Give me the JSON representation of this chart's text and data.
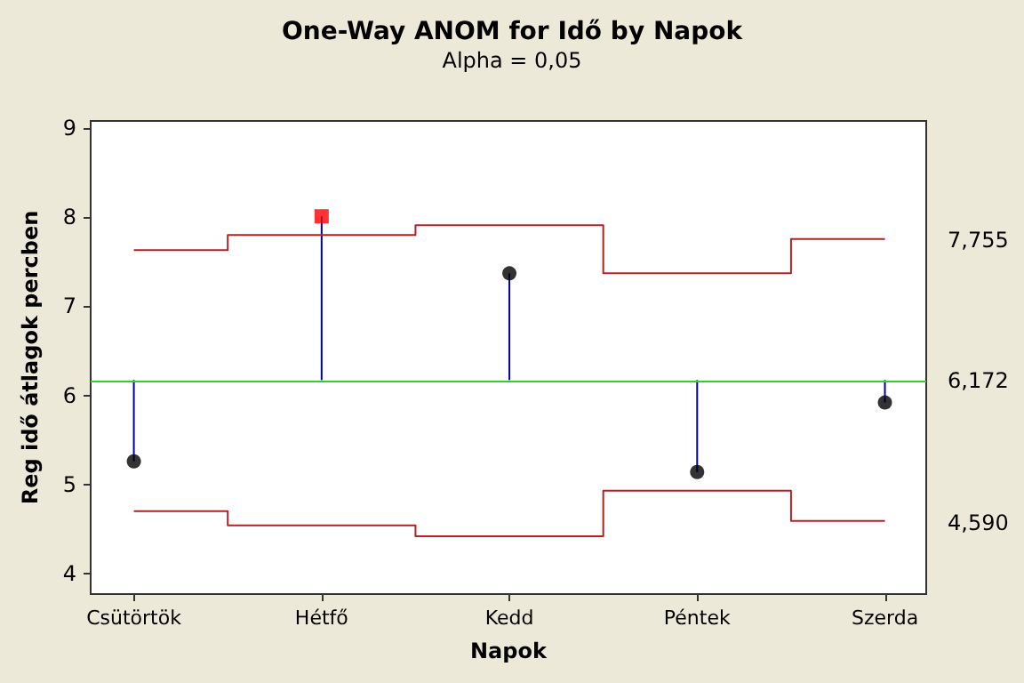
{
  "chart_data": {
    "type": "scatter",
    "title": "One-Way ANOM for Idő by Napok",
    "subtitle": "Alpha = 0,05",
    "xlabel": "Napok",
    "ylabel": "Reg idő átlagok percben",
    "categories": [
      "Csütörtök",
      "Hétfő",
      "Kedd",
      "Péntek",
      "Szerda"
    ],
    "series": [
      {
        "color": "#000000",
        "marker": "circle",
        "values": [
          5.26,
          null,
          7.37,
          5.14,
          5.92
        ],
        "errors": [
          [
            5.26,
            6.172
          ],
          null,
          [
            6.172,
            7.37
          ],
          [
            5.14,
            6.172
          ],
          [
            5.92,
            6.172
          ]
        ]
      },
      {
        "color": "#ff0000",
        "marker": "square",
        "values": [
          null,
          8.01,
          null,
          null,
          null
        ],
        "errors": [
          null,
          [
            6.172,
            8.01
          ],
          null,
          null,
          null
        ]
      },
      {
        "type": "step",
        "color": "#b22222",
        "values": [
          7.63,
          7.8,
          7.91,
          7.37,
          7.755
        ]
      },
      {
        "type": "step",
        "color": "#b22222",
        "values": [
          4.7,
          4.54,
          4.42,
          4.93,
          4.59
        ]
      }
    ],
    "ref_lines": [
      {
        "axis": "y",
        "value": 6.172,
        "color": "#33cc33"
      }
    ],
    "annotations": [
      "7,755",
      "6,172",
      "4,590"
    ],
    "ylim": [
      3.77,
      9.08
    ],
    "yticks": [
      4,
      5,
      6,
      7,
      8,
      9
    ],
    "grid": false
  }
}
